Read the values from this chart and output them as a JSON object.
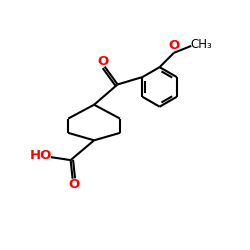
{
  "background_color": "#ffffff",
  "bond_color": "#000000",
  "oxygen_color": "#ff0000",
  "lw": 1.5,
  "xlim": [
    0,
    10
  ],
  "ylim": [
    0,
    10
  ]
}
